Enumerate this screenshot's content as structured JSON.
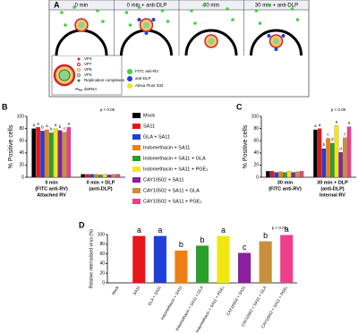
{
  "diagram": {
    "label": "A",
    "time_points": [
      "0 min",
      "0 min + anti-DLP",
      "30 min",
      "30 min + anti-DLP"
    ],
    "legend": [
      "VP4",
      "VP7",
      "VP6",
      "VP2",
      "Replication complexes",
      "dsRNA",
      "FITC anti-RV",
      "anti-DLP",
      "Alexa Fluor 532"
    ]
  },
  "chart_data": [
    {
      "type": "grouped-bar",
      "panel": "B",
      "y_label": "% Positive cells",
      "annotation": "p < 0.05",
      "categories": [
        [
          "0 min",
          "(FITC anti-RV)",
          "Attached RV"
        ],
        [
          "0 min + DLP",
          "(anti-DLP)"
        ]
      ],
      "ylim": [
        0,
        100
      ],
      "yticks": [
        0,
        20,
        40,
        60,
        80,
        100
      ],
      "series": [
        {
          "name": "Mock",
          "color": "#000000",
          "values": [
            80,
            5
          ],
          "letters": [
            "a",
            null
          ]
        },
        {
          "name": "SA11",
          "color": "#e8131b",
          "values": [
            82,
            5
          ],
          "letters": [
            "a",
            null
          ]
        },
        {
          "name": "GLA + SA11",
          "color": "#1f3fd6",
          "values": [
            76,
            5
          ],
          "letters": [
            "b",
            null
          ]
        },
        {
          "name": "Indomethacin + SA11",
          "color": "#f07f12",
          "values": [
            78,
            5
          ],
          "letters": [
            "a",
            null
          ]
        },
        {
          "name": "Indomethacin + SA11 + GLA",
          "color": "#2aa02a",
          "values": [
            73,
            4
          ],
          "letters": [
            "b",
            null
          ]
        },
        {
          "name": "Indomethacin + SA11 + PGE₂",
          "color": "#f0e812",
          "values": [
            80,
            5
          ],
          "letters": [
            "a",
            null
          ]
        },
        {
          "name": "CAY10502 + SA11",
          "color": "#8a1fa0",
          "values": [
            77,
            4
          ],
          "letters": [
            "b",
            null
          ]
        },
        {
          "name": "CAY10502 + SA11 + GLA",
          "color": "#c8903c",
          "values": [
            74,
            5
          ],
          "letters": [
            "c",
            null
          ]
        },
        {
          "name": "CAY10502 + SA11 + PGE₂",
          "color": "#ee3f8c",
          "values": [
            82,
            5
          ],
          "letters": [
            "a",
            null
          ]
        }
      ]
    },
    {
      "type": "grouped-bar",
      "panel": "C",
      "y_label": "% Positive cells",
      "annotation": "p < 0.05",
      "categories": [
        [
          "30 min",
          "(FITC anti-RV)"
        ],
        [
          "30 min + DLP",
          "(anti-DLP)",
          "Internal RV"
        ]
      ],
      "ylim": [
        0,
        100
      ],
      "yticks": [
        0,
        20,
        40,
        60,
        80,
        100
      ],
      "series": [
        {
          "name": "Mock",
          "color": "#000000",
          "values": [
            10,
            78
          ],
          "letters": [
            null,
            "a"
          ]
        },
        {
          "name": "SA11",
          "color": "#e8131b",
          "values": [
            10,
            80
          ],
          "letters": [
            null,
            "a"
          ]
        },
        {
          "name": "GLA + SA11",
          "color": "#1f3fd6",
          "values": [
            8,
            47
          ],
          "letters": [
            null,
            "b"
          ]
        },
        {
          "name": "Indomethacin + SA11",
          "color": "#f07f12",
          "values": [
            9,
            64
          ],
          "letters": [
            null,
            "c"
          ]
        },
        {
          "name": "Indomethacin + SA11 + GLA",
          "color": "#2aa02a",
          "values": [
            8,
            56
          ],
          "letters": [
            null,
            "d"
          ]
        },
        {
          "name": "Indomethacin + SA11 + PGE₂",
          "color": "#f0e812",
          "values": [
            10,
            85
          ],
          "letters": [
            null,
            "a"
          ]
        },
        {
          "name": "CAY10502 + SA11",
          "color": "#8a1fa0",
          "values": [
            8,
            41
          ],
          "letters": [
            null,
            "d"
          ]
        },
        {
          "name": "CAY10502 + SA11 + GLA",
          "color": "#c8903c",
          "values": [
            9,
            65
          ],
          "letters": [
            null,
            "c"
          ]
        },
        {
          "name": "CAY10502 + SA11 + PGE₂",
          "color": "#ee3f8c",
          "values": [
            10,
            83
          ],
          "letters": [
            null,
            "a"
          ]
        }
      ]
    },
    {
      "type": "bar",
      "panel": "D",
      "y_label": "Relative internalised virus (%)",
      "annotation": "p < 0.05",
      "categories": [
        "Mock",
        "SA11",
        "GLA + SA11",
        "Indomethacin + SA11",
        "Indomethacin + SA11 + GLA",
        "Indomethacin + SA11 + PGE₂",
        "CAY10502 + SA11",
        "CAY10502 + SA11 + GLA",
        "CAY10502 + SA11 + PGE₂"
      ],
      "values": [
        0,
        97,
        97,
        67,
        77,
        97,
        62,
        86,
        99
      ],
      "letters": [
        null,
        "a",
        "a",
        "b",
        "b",
        "a",
        "c",
        "b",
        "a"
      ],
      "colors": [
        "#000000",
        "#e8131b",
        "#1f3fd6",
        "#f07f12",
        "#2aa02a",
        "#f0e812",
        "#8a1fa0",
        "#c8903c",
        "#ee3f8c"
      ],
      "ylim": [
        0,
        100
      ],
      "yticks": [
        0,
        20,
        40,
        60,
        80,
        100
      ]
    }
  ]
}
